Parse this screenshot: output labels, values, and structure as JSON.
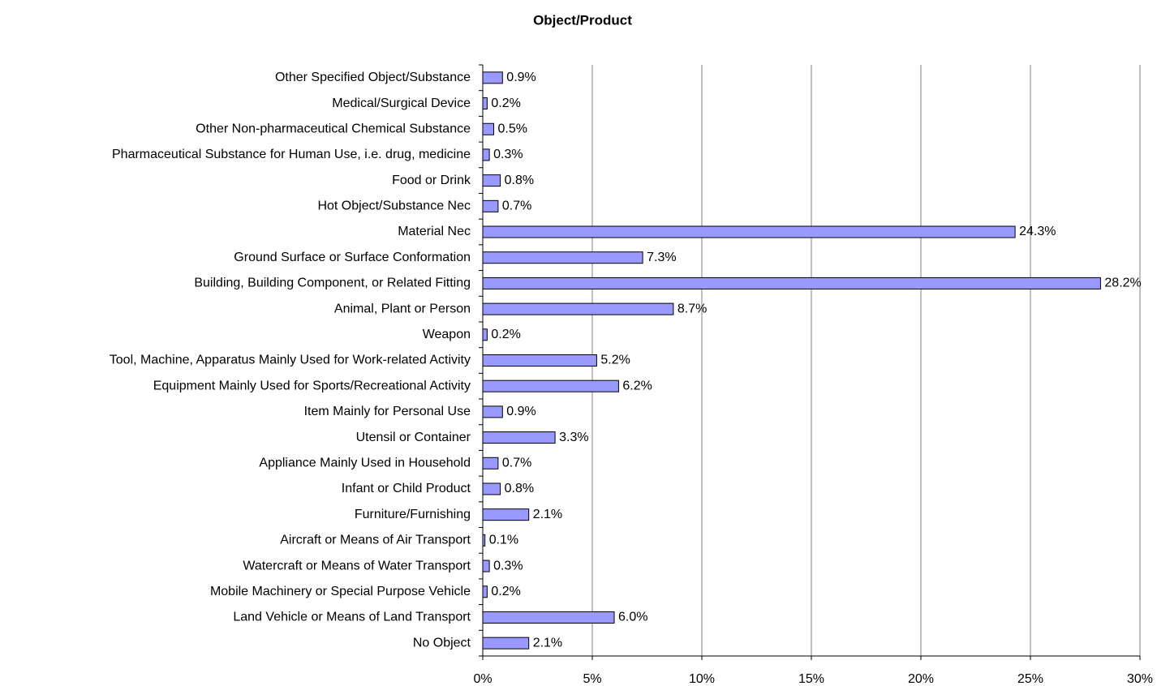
{
  "chart_data": {
    "type": "bar",
    "orientation": "horizontal",
    "title": "Object/Product",
    "categories": [
      "Other Specified Object/Substance",
      "Medical/Surgical Device",
      "Other Non-pharmaceutical Chemical Substance",
      "Pharmaceutical Substance for Human Use, i.e. drug, medicine",
      "Food or Drink",
      "Hot Object/Substance Nec",
      "Material Nec",
      "Ground Surface or Surface Conformation",
      "Building, Building Component, or Related Fitting",
      "Animal, Plant or Person",
      "Weapon",
      "Tool, Machine, Apparatus Mainly Used for Work-related Activity",
      "Equipment Mainly Used for Sports/Recreational Activity",
      "Item Mainly for Personal Use",
      "Utensil or Container",
      "Appliance Mainly Used in Household",
      "Infant or Child Product",
      "Furniture/Furnishing",
      "Aircraft or Means of Air Transport",
      "Watercraft or Means of Water Transport",
      "Mobile Machinery or Special Purpose Vehicle",
      "Land Vehicle or Means of Land Transport",
      "No Object"
    ],
    "values": [
      0.9,
      0.2,
      0.5,
      0.3,
      0.8,
      0.7,
      24.3,
      7.3,
      28.2,
      8.7,
      0.2,
      5.2,
      6.2,
      0.9,
      3.3,
      0.7,
      0.8,
      2.1,
      0.1,
      0.3,
      0.2,
      6.0,
      2.1
    ],
    "value_labels": [
      "0.9%",
      "0.2%",
      "0.5%",
      "0.3%",
      "0.8%",
      "0.7%",
      "24.3%",
      "7.3%",
      "28.2%",
      "8.7%",
      "0.2%",
      "5.2%",
      "6.2%",
      "0.9%",
      "3.3%",
      "0.7%",
      "0.8%",
      "2.1%",
      "0.1%",
      "0.3%",
      "0.2%",
      "6.0%",
      "2.1%"
    ],
    "color": "#9999ff",
    "xlim": [
      0,
      30
    ],
    "xticks": [
      {
        "value": 0,
        "label": "0%"
      },
      {
        "value": 5,
        "label": "5%"
      },
      {
        "value": 10,
        "label": "10%"
      },
      {
        "value": 15,
        "label": "15%"
      },
      {
        "value": 20,
        "label": "20%"
      },
      {
        "value": 25,
        "label": "25%"
      },
      {
        "value": 30,
        "label": "30%"
      }
    ],
    "grid": true
  }
}
